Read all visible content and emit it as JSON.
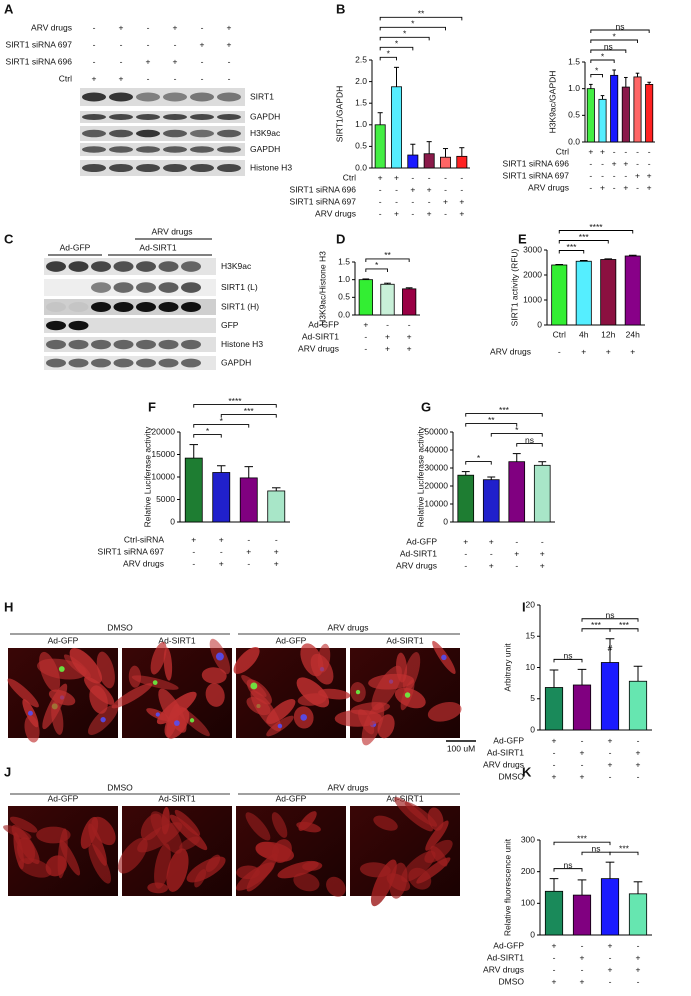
{
  "panel_labels": [
    "A",
    "B",
    "C",
    "D",
    "E",
    "F",
    "G",
    "H",
    "I",
    "J",
    "K"
  ],
  "blot_a": {
    "conditions": [
      {
        "label": "ARV drugs",
        "marks": [
          "-",
          "+",
          "-",
          "+",
          "-",
          "+"
        ]
      },
      {
        "label": "SIRT1 siRNA 697",
        "marks": [
          "-",
          "-",
          "-",
          "-",
          "+",
          "+"
        ]
      },
      {
        "label": "SIRT1 siRNA 696",
        "marks": [
          "-",
          "-",
          "+",
          "+",
          "-",
          "-"
        ]
      },
      {
        "label": "Ctrl",
        "marks": [
          "+",
          "+",
          "-",
          "-",
          "-",
          "-"
        ]
      }
    ],
    "bands": [
      "SIRT1",
      "GAPDH",
      "H3K9ac",
      "GAPDH",
      "Histone H3"
    ]
  },
  "blot_c": {
    "groups": [
      "Ad-GFP",
      "Ad-SIRT1"
    ],
    "treatment": "ARV drugs",
    "bands": [
      "H3K9ac",
      "SIRT1  (L)",
      "SIRT1 (H)",
      "GFP",
      "Histone H3",
      "GAPDH"
    ]
  },
  "micrographs_h": {
    "groups": [
      "DMSO",
      "ARV drugs"
    ],
    "panels": [
      "Ad-GFP",
      "Ad-SIRT1",
      "Ad-GFP",
      "Ad-SIRT1"
    ],
    "scale_bar": "100 uM"
  },
  "micrographs_j": {
    "groups": [
      "DMSO",
      "ARV drugs"
    ],
    "panels": [
      "Ad-GFP",
      "Ad-SIRT1",
      "Ad-GFP",
      "Ad-SIRT1"
    ]
  },
  "chart_data": [
    {
      "type": "bar",
      "y_label": "SIRT1/GAPDH",
      "values": [
        1.0,
        1.88,
        0.3,
        0.33,
        0.25,
        0.27
      ],
      "errors": [
        0.28,
        0.45,
        0.25,
        0.28,
        0.2,
        0.2
      ],
      "colors": [
        "#44ee44",
        "#55eeff",
        "#1a1aff",
        "#8a1a4a",
        "#ff6666",
        "#ff2222"
      ],
      "ylim": [
        0,
        2.5
      ],
      "yticks": [
        {
          "value": 0,
          "label": "0.0"
        },
        0.5,
        {
          "value": 1,
          "label": "1.0"
        },
        1.5,
        {
          "value": 2,
          "label": "2.0"
        },
        2.5
      ],
      "conditions": [
        {
          "label": "Ctrl",
          "marks": [
            "+",
            "+",
            "-",
            "-",
            "-",
            "-"
          ]
        },
        {
          "label": "SIRT1 siRNA 696",
          "marks": [
            "-",
            "-",
            "+",
            "+",
            "-",
            "-"
          ]
        },
        {
          "label": "SIRT1 siRNA 697",
          "marks": [
            "-",
            "-",
            "-",
            "-",
            "+",
            "+"
          ]
        },
        {
          "label": "ARV drugs",
          "marks": [
            "-",
            "+",
            "-",
            "+",
            "-",
            "+"
          ]
        }
      ],
      "comparisons": [
        {
          "bars": [
            0,
            1
          ],
          "label": "*"
        },
        {
          "bars": [
            0,
            2
          ],
          "label": "*"
        },
        {
          "bars": [
            0,
            3
          ],
          "label": "*"
        },
        {
          "bars": [
            0,
            4
          ],
          "label": "*"
        },
        {
          "bars": [
            0,
            5
          ],
          "label": "**"
        }
      ]
    },
    {
      "type": "bar",
      "y_label": "H3K9ac/GAPDH",
      "values": [
        1.0,
        0.8,
        1.25,
        1.03,
        1.22,
        1.08
      ],
      "errors": [
        0.08,
        0.07,
        0.1,
        0.18,
        0.07,
        0.04
      ],
      "colors": [
        "#44ee44",
        "#55eeff",
        "#1a1aff",
        "#8a1a4a",
        "#ff6666",
        "#ff2222"
      ],
      "ylim": [
        0,
        1.5
      ],
      "yticks": [
        {
          "value": 0,
          "label": "0.0"
        },
        0.5,
        {
          "value": 1,
          "label": "1.0"
        },
        1.5
      ],
      "conditions": [
        {
          "label": "Ctrl",
          "marks": [
            "+",
            "+",
            "-",
            "-",
            "-",
            "-"
          ]
        },
        {
          "label": "SIRT1 siRNA 696",
          "marks": [
            "-",
            "-",
            "+",
            "+",
            "-",
            "-"
          ]
        },
        {
          "label": "SIRT1 siRNA 697",
          "marks": [
            "-",
            "-",
            "-",
            "-",
            "+",
            "+"
          ]
        },
        {
          "label": "ARV drugs",
          "marks": [
            "-",
            "+",
            "-",
            "+",
            "-",
            "+"
          ]
        }
      ],
      "comparisons": [
        {
          "bars": [
            0,
            1
          ],
          "label": "*"
        },
        {
          "bars": [
            0,
            2
          ],
          "label": "*"
        },
        {
          "bars": [
            0,
            3
          ],
          "label": "ns"
        },
        {
          "bars": [
            0,
            4
          ],
          "label": "*"
        },
        {
          "bars": [
            0,
            5
          ],
          "label": "ns"
        }
      ]
    },
    {
      "type": "bar",
      "y_label": "H3K9ac/Histone H3",
      "values": [
        1.0,
        0.87,
        0.74
      ],
      "errors": [
        0.02,
        0.03,
        0.03
      ],
      "colors": [
        "#33ee33",
        "#c8f0d8",
        "#990044"
      ],
      "ylim": [
        0,
        1.5
      ],
      "yticks": [
        {
          "value": 0,
          "label": "0.0"
        },
        0.5,
        {
          "value": 1,
          "label": "1.0"
        },
        1.5
      ],
      "conditions": [
        {
          "label": "Ad-GFP",
          "marks": [
            "+",
            "-",
            "-"
          ]
        },
        {
          "label": "Ad-SIRT1",
          "marks": [
            "-",
            "+",
            "+"
          ]
        },
        {
          "label": "ARV drugs",
          "marks": [
            "-",
            "+",
            "+"
          ]
        }
      ],
      "comparisons": [
        {
          "bars": [
            0,
            1
          ],
          "label": "*"
        },
        {
          "bars": [
            0,
            2
          ],
          "label": "**"
        }
      ]
    },
    {
      "type": "bar",
      "y_label": "SIRT1 activity (RFU)",
      "categories": [
        "Ctrl",
        "4h",
        "12h",
        "24h"
      ],
      "values": [
        2400,
        2550,
        2620,
        2760
      ],
      "errors": [
        20,
        30,
        25,
        30
      ],
      "colors": [
        "#33ee33",
        "#55eeff",
        "#8b1040",
        "#880088"
      ],
      "ylim": [
        0,
        3000
      ],
      "yticks": [
        0,
        1000,
        2000,
        3000
      ],
      "conditions": [
        {
          "label": "ARV drugs",
          "marks": [
            "-",
            "+",
            "+",
            "+"
          ]
        }
      ],
      "comparisons": [
        {
          "bars": [
            0,
            1
          ],
          "label": "***"
        },
        {
          "bars": [
            0,
            2
          ],
          "label": "***"
        },
        {
          "bars": [
            0,
            3
          ],
          "label": "****"
        }
      ]
    },
    {
      "type": "bar",
      "y_label": "Relative Luciferase activity",
      "values": [
        14200,
        11000,
        9800,
        6900
      ],
      "errors": [
        3000,
        1500,
        2500,
        700
      ],
      "colors": [
        "#1e7d32",
        "#2020cc",
        "#800080",
        "#a8e6c8"
      ],
      "ylim": [
        0,
        20000
      ],
      "yticks": [
        0,
        5000,
        10000,
        15000,
        20000
      ],
      "conditions": [
        {
          "label": "Ctrl-siRNA",
          "marks": [
            "+",
            "+",
            "-",
            "-"
          ]
        },
        {
          "label": "SIRT1 siRNA 697",
          "marks": [
            "-",
            "-",
            "+",
            "+"
          ]
        },
        {
          "label": "ARV drugs",
          "marks": [
            "-",
            "+",
            "-",
            "+"
          ]
        }
      ],
      "comparisons": [
        {
          "bars": [
            0,
            1
          ],
          "label": "*"
        },
        {
          "bars": [
            0,
            2
          ],
          "label": "*"
        },
        {
          "bars": [
            0,
            3
          ],
          "label": "****"
        },
        {
          "bars": [
            1,
            3
          ],
          "label": "***"
        }
      ]
    },
    {
      "type": "bar",
      "y_label": "Relative Luciferase activity",
      "values": [
        26000,
        23500,
        33500,
        31500
      ],
      "errors": [
        2000,
        1500,
        4500,
        2000
      ],
      "colors": [
        "#1e7d32",
        "#2020cc",
        "#800080",
        "#a8e6c8"
      ],
      "ylim": [
        0,
        50000
      ],
      "yticks": [
        0,
        10000,
        20000,
        30000,
        40000,
        50000
      ],
      "conditions": [
        {
          "label": "Ad-GFP",
          "marks": [
            "+",
            "+",
            "-",
            "-"
          ]
        },
        {
          "label": "Ad-SIRT1",
          "marks": [
            "-",
            "-",
            "+",
            "+"
          ]
        },
        {
          "label": "ARV drugs",
          "marks": [
            "-",
            "+",
            "-",
            "+"
          ]
        }
      ],
      "comparisons": [
        {
          "bars": [
            0,
            1
          ],
          "label": "*"
        },
        {
          "bars": [
            2,
            3
          ],
          "label": "ns"
        },
        {
          "bars": [
            1,
            3
          ],
          "label": "*"
        },
        {
          "bars": [
            0,
            2
          ],
          "label": "**"
        },
        {
          "bars": [
            0,
            3
          ],
          "label": "***"
        }
      ]
    },
    {
      "type": "bar",
      "y_label": "Arbitrary unit",
      "values": [
        6.8,
        7.2,
        10.8,
        7.8
      ],
      "errors": [
        2.8,
        2.5,
        3.8,
        2.4
      ],
      "value_markers": [
        null,
        null,
        "#",
        null
      ],
      "colors": [
        "#1a8a5a",
        "#800080",
        "#1a1aff",
        "#66e6b0"
      ],
      "ylim": [
        0,
        20
      ],
      "yticks": [
        0,
        5,
        10,
        15,
        20
      ],
      "conditions": [
        {
          "label": "Ad-GFP",
          "marks": [
            "+",
            "-",
            "+",
            "-"
          ]
        },
        {
          "label": "Ad-SIRT1",
          "marks": [
            "-",
            "+",
            "-",
            "+"
          ]
        },
        {
          "label": "ARV drugs",
          "marks": [
            "-",
            "-",
            "+",
            "+"
          ]
        },
        {
          "label": "DMSO",
          "marks": [
            "+",
            "+",
            "-",
            "-"
          ]
        }
      ],
      "comparisons": [
        {
          "bars": [
            0,
            1
          ],
          "label": "ns"
        },
        {
          "bars": [
            1,
            2
          ],
          "label": "***"
        },
        {
          "bars": [
            2,
            3
          ],
          "label": "***"
        },
        {
          "bars": [
            1,
            3
          ],
          "label": "ns"
        }
      ]
    },
    {
      "type": "bar",
      "y_label": "Relative fluorescence unit",
      "values": [
        138,
        126,
        178,
        130
      ],
      "errors": [
        40,
        48,
        52,
        38
      ],
      "colors": [
        "#1a8a5a",
        "#800080",
        "#1a1aff",
        "#66e6b0"
      ],
      "ylim": [
        0,
        300
      ],
      "yticks": [
        0,
        100,
        200,
        300
      ],
      "conditions": [
        {
          "label": "Ad-GFP",
          "marks": [
            "+",
            "-",
            "+",
            "-"
          ]
        },
        {
          "label": "Ad-SIRT1",
          "marks": [
            "-",
            "+",
            "-",
            "+"
          ]
        },
        {
          "label": "ARV drugs",
          "marks": [
            "-",
            "-",
            "+",
            "+"
          ]
        },
        {
          "label": "DMSO",
          "marks": [
            "+",
            "+",
            "-",
            "-"
          ]
        }
      ],
      "comparisons": [
        {
          "bars": [
            0,
            1
          ],
          "label": "ns"
        },
        {
          "bars": [
            1,
            2
          ],
          "label": "ns"
        },
        {
          "bars": [
            2,
            3
          ],
          "label": "***"
        },
        {
          "bars": [
            0,
            2
          ],
          "label": "***"
        }
      ]
    }
  ]
}
